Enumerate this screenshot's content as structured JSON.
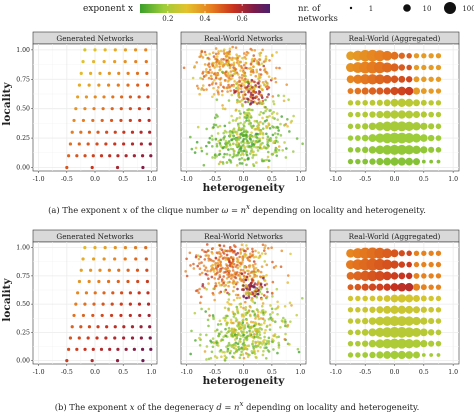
{
  "legend": {
    "color_title": "exponent x",
    "color_ticks": [
      "0.2",
      "0.4",
      "0.6"
    ],
    "color_tick_values": [
      0.2,
      0.4,
      0.6
    ],
    "color_range": [
      0.05,
      0.75
    ],
    "size_title_line1": "nr. of",
    "size_title_line2": "networks",
    "size_ticks": [
      "1",
      "10",
      "100"
    ],
    "size_tick_values": [
      1,
      10,
      100
    ]
  },
  "figure_rows": [
    {
      "caption_prefix": "(a) The exponent ",
      "caption_var": "x",
      "caption_mid": " of the clique number ",
      "caption_formula": "ω = n",
      "caption_sup": "x",
      "caption_suffix": " depending on locality and heterogeneity."
    },
    {
      "caption_prefix": "(b) The exponent ",
      "caption_var": "x",
      "caption_mid": " of the degeneracy ",
      "caption_formula": "d = n",
      "caption_sup": "x",
      "caption_suffix": " depending on locality and heterogeneity."
    }
  ],
  "panels": {
    "titles": [
      "Generated Networks",
      "Real-World Networks",
      "Real-World (Aggregated)"
    ],
    "xlabel": "heterogeneity",
    "ylabel": "locality",
    "x_ticks": [
      "-1.0",
      "-0.5",
      "0.0",
      "0.5",
      "1.0"
    ],
    "y_ticks": [
      "0.00",
      "0.25",
      "0.50",
      "0.75",
      "1.00"
    ]
  },
  "colors": {
    "strip_bg": "#d9d9d9",
    "panel_bg": "#ffffff",
    "grid": "#ebebeb",
    "gradient": [
      "#3a9f2a",
      "#9ccd3a",
      "#e4c22c",
      "#e67d1f",
      "#c8321e",
      "#7a1b4b",
      "#4b1f6e"
    ]
  },
  "chart_data": [
    {
      "row": "a",
      "panel": "Generated Networks",
      "type": "scatter",
      "xlim": [
        -1.1,
        1.1
      ],
      "ylim": [
        -0.03,
        1.05
      ],
      "note": "regular grid of generated parameter combinations; colour = exponent x",
      "grid_x": [
        -0.5,
        -0.4,
        -0.3,
        -0.2,
        -0.1,
        0.0,
        0.1,
        0.2,
        0.3,
        0.4,
        0.5,
        0.6,
        0.7,
        0.8,
        0.9,
        1.0
      ],
      "grid_y": [
        0.0,
        0.1,
        0.2,
        0.3,
        0.4,
        0.5,
        0.6,
        0.7,
        0.8,
        0.9,
        1.0
      ],
      "x_by_col_at_locality_0": [
        -0.5,
        0.0,
        0.5,
        1.0
      ],
      "x_shift_at_locality_1": [
        -0.2,
        0.9
      ]
    },
    {
      "row": "a",
      "panel": "Real-World Networks",
      "type": "scatter",
      "xlim": [
        -1.1,
        1.1
      ],
      "ylim": [
        -0.03,
        1.05
      ],
      "clusters": [
        {
          "x": -0.35,
          "y": 0.85,
          "spread_x": 0.3,
          "spread_y": 0.12,
          "exponent": 0.38,
          "n": 260
        },
        {
          "x": 0.1,
          "y": 0.8,
          "spread_x": 0.25,
          "spread_y": 0.15,
          "exponent": 0.32,
          "n": 150
        },
        {
          "x": 0.15,
          "y": 0.62,
          "spread_x": 0.12,
          "spread_y": 0.06,
          "exponent": 0.55,
          "n": 60
        },
        {
          "x": 0.0,
          "y": 0.2,
          "spread_x": 0.35,
          "spread_y": 0.12,
          "exponent": 0.12,
          "n": 320
        },
        {
          "x": 0.2,
          "y": 0.4,
          "spread_x": 0.35,
          "spread_y": 0.15,
          "exponent": 0.2,
          "n": 160
        }
      ]
    },
    {
      "row": "a",
      "panel": "Real-World (Aggregated)",
      "type": "scatter",
      "xlim": [
        -1.1,
        1.1
      ],
      "ylim": [
        -0.03,
        1.05
      ],
      "bins_x": [
        -0.75,
        -0.625,
        -0.5,
        -0.375,
        -0.25,
        -0.125,
        0.0,
        0.125,
        0.25,
        0.375,
        0.5,
        0.625,
        0.75
      ],
      "bins_y": [
        0.95,
        0.85,
        0.75,
        0.65,
        0.55,
        0.45,
        0.35,
        0.25,
        0.15,
        0.05
      ]
    },
    {
      "row": "b",
      "panel": "Generated Networks",
      "type": "scatter",
      "xlim": [
        -1.1,
        1.1
      ],
      "ylim": [
        -0.03,
        1.05
      ]
    },
    {
      "row": "b",
      "panel": "Real-World Networks",
      "type": "scatter",
      "xlim": [
        -1.1,
        1.1
      ],
      "ylim": [
        -0.03,
        1.05
      ]
    },
    {
      "row": "b",
      "panel": "Real-World (Aggregated)",
      "type": "scatter",
      "xlim": [
        -1.1,
        1.1
      ],
      "ylim": [
        -0.03,
        1.05
      ]
    }
  ]
}
